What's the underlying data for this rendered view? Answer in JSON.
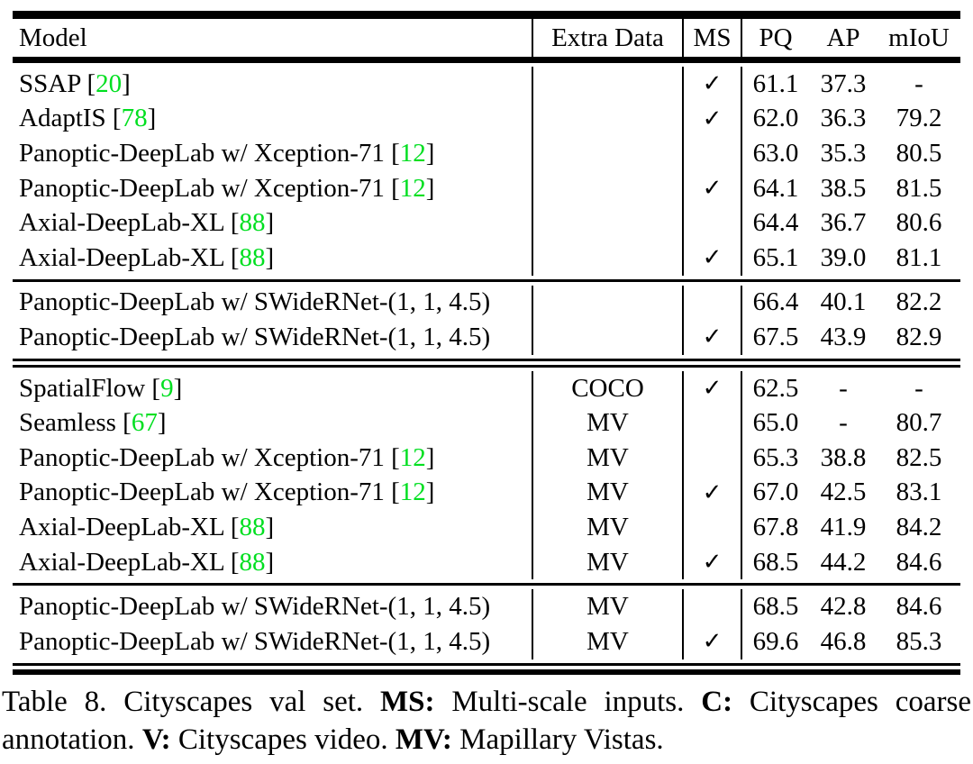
{
  "colors": {
    "citation_green": "#00DF20",
    "text": "#000000",
    "rule": "#000000"
  },
  "header": {
    "model": "Model",
    "extra_data": "Extra Data",
    "ms": "MS",
    "pq": "PQ",
    "ap": "AP",
    "miou": "mIoU"
  },
  "groups": [
    {
      "rows": [
        {
          "model_prefix": "SSAP [",
          "cite": "20",
          "model_suffix": "]",
          "extra": "",
          "ms": "✓",
          "pq": "61.1",
          "ap": "37.3",
          "miou": "-"
        },
        {
          "model_prefix": "AdaptIS [",
          "cite": "78",
          "model_suffix": "]",
          "extra": "",
          "ms": "✓",
          "pq": "62.0",
          "ap": "36.3",
          "miou": "79.2"
        },
        {
          "model_prefix": "Panoptic-DeepLab w/ Xception-71 [",
          "cite": "12",
          "model_suffix": "]",
          "extra": "",
          "ms": "",
          "pq": "63.0",
          "ap": "35.3",
          "miou": "80.5"
        },
        {
          "model_prefix": "Panoptic-DeepLab w/ Xception-71 [",
          "cite": "12",
          "model_suffix": "]",
          "extra": "",
          "ms": "✓",
          "pq": "64.1",
          "ap": "38.5",
          "miou": "81.5"
        },
        {
          "model_prefix": "Axial-DeepLab-XL [",
          "cite": "88",
          "model_suffix": "]",
          "extra": "",
          "ms": "",
          "pq": "64.4",
          "ap": "36.7",
          "miou": "80.6"
        },
        {
          "model_prefix": "Axial-DeepLab-XL [",
          "cite": "88",
          "model_suffix": "]",
          "extra": "",
          "ms": "✓",
          "pq": "65.1",
          "ap": "39.0",
          "miou": "81.1"
        }
      ]
    },
    {
      "rows": [
        {
          "model_prefix": "Panoptic-DeepLab w/ SWideRNet-(1, 1, 4.5)",
          "cite": "",
          "model_suffix": "",
          "extra": "",
          "ms": "",
          "pq": "66.4",
          "ap": "40.1",
          "miou": "82.2"
        },
        {
          "model_prefix": "Panoptic-DeepLab w/ SWideRNet-(1, 1, 4.5)",
          "cite": "",
          "model_suffix": "",
          "extra": "",
          "ms": "✓",
          "pq": "67.5",
          "ap": "43.9",
          "miou": "82.9"
        }
      ]
    },
    {
      "rows": [
        {
          "model_prefix": "SpatialFlow [",
          "cite": "9",
          "model_suffix": "]",
          "extra": "COCO",
          "ms": "✓",
          "pq": "62.5",
          "ap": "-",
          "miou": "-"
        },
        {
          "model_prefix": "Seamless [",
          "cite": "67",
          "model_suffix": "]",
          "extra": "MV",
          "ms": "",
          "pq": "65.0",
          "ap": "-",
          "miou": "80.7"
        },
        {
          "model_prefix": "Panoptic-DeepLab w/ Xception-71 [",
          "cite": "12",
          "model_suffix": "]",
          "extra": "MV",
          "ms": "",
          "pq": "65.3",
          "ap": "38.8",
          "miou": "82.5"
        },
        {
          "model_prefix": "Panoptic-DeepLab w/ Xception-71 [",
          "cite": "12",
          "model_suffix": "]",
          "extra": "MV",
          "ms": "✓",
          "pq": "67.0",
          "ap": "42.5",
          "miou": "83.1"
        },
        {
          "model_prefix": "Axial-DeepLab-XL [",
          "cite": "88",
          "model_suffix": "]",
          "extra": "MV",
          "ms": "",
          "pq": "67.8",
          "ap": "41.9",
          "miou": "84.2"
        },
        {
          "model_prefix": "Axial-DeepLab-XL [",
          "cite": "88",
          "model_suffix": "]",
          "extra": "MV",
          "ms": "✓",
          "pq": "68.5",
          "ap": "44.2",
          "miou": "84.6"
        }
      ]
    },
    {
      "rows": [
        {
          "model_prefix": "Panoptic-DeepLab w/ SWideRNet-(1, 1, 4.5)",
          "cite": "",
          "model_suffix": "",
          "extra": "MV",
          "ms": "",
          "pq": "68.5",
          "ap": "42.8",
          "miou": "84.6"
        },
        {
          "model_prefix": "Panoptic-DeepLab w/ SWideRNet-(1, 1, 4.5)",
          "cite": "",
          "model_suffix": "",
          "extra": "MV",
          "ms": "✓",
          "pq": "69.6",
          "ap": "46.8",
          "miou": "85.3"
        }
      ]
    }
  ],
  "caption": {
    "segments": [
      "Table 8. Cityscapes val set. ",
      "MS:",
      " Multi-scale inputs. ",
      "C:",
      " Cityscapes coarse annotation. ",
      "V:",
      " Cityscapes video. ",
      "MV:",
      " Mapillary Vistas."
    ]
  }
}
